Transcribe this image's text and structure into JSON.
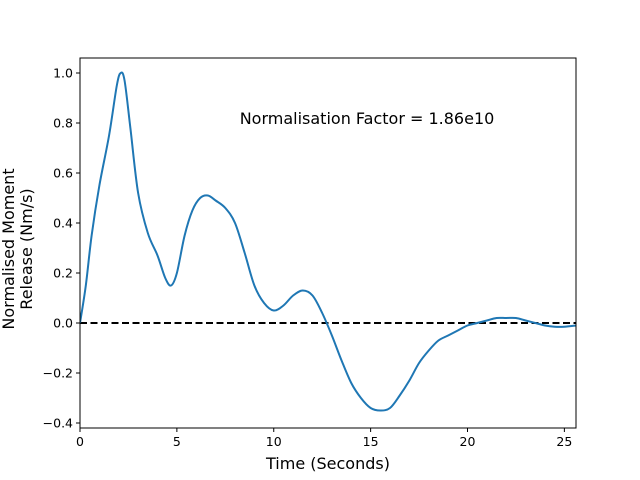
{
  "chart_data": {
    "type": "line",
    "title": "",
    "xlabel": "Time (Seconds)",
    "ylabel": [
      "Normalised Moment",
      "Release (Nm/s)"
    ],
    "xlim": [
      0,
      25.6
    ],
    "ylim": [
      -0.42,
      1.06
    ],
    "xticks": [
      0,
      5,
      10,
      15,
      20,
      25
    ],
    "yticks": [
      -0.4,
      -0.2,
      0.0,
      0.2,
      0.4,
      0.6,
      0.8,
      1.0
    ],
    "grid": false,
    "annotation": "Normalisation Factor = 1.86e10",
    "series": [
      {
        "color": "#1f77b4",
        "x": [
          0,
          0.3,
          0.6,
          1.0,
          1.5,
          1.9,
          2.1,
          2.3,
          2.6,
          3.0,
          3.5,
          4.0,
          4.4,
          4.7,
          5.0,
          5.4,
          5.8,
          6.2,
          6.6,
          7.0,
          7.5,
          8.0,
          8.5,
          9.0,
          9.5,
          10.0,
          10.5,
          11.0,
          11.5,
          12.0,
          12.5,
          13.0,
          13.5,
          14.0,
          14.5,
          15.0,
          15.5,
          16.0,
          16.5,
          17.0,
          17.5,
          18.0,
          18.5,
          19.0,
          19.5,
          20.0,
          20.5,
          21.0,
          21.5,
          22.0,
          22.5,
          23.0,
          23.5,
          24.0,
          24.5,
          25.0,
          25.6
        ],
        "y": [
          0.0,
          0.15,
          0.35,
          0.55,
          0.75,
          0.95,
          1.0,
          0.97,
          0.78,
          0.52,
          0.36,
          0.27,
          0.18,
          0.15,
          0.2,
          0.35,
          0.45,
          0.5,
          0.51,
          0.49,
          0.46,
          0.4,
          0.28,
          0.15,
          0.08,
          0.05,
          0.07,
          0.11,
          0.13,
          0.11,
          0.04,
          -0.05,
          -0.15,
          -0.24,
          -0.3,
          -0.34,
          -0.35,
          -0.34,
          -0.29,
          -0.23,
          -0.16,
          -0.11,
          -0.07,
          -0.05,
          -0.03,
          -0.01,
          0.0,
          0.01,
          0.02,
          0.02,
          0.02,
          0.01,
          0.0,
          -0.01,
          -0.015,
          -0.015,
          -0.01
        ]
      }
    ],
    "reference_line": {
      "y": 0,
      "style": "dashed",
      "color": "#000000"
    }
  }
}
